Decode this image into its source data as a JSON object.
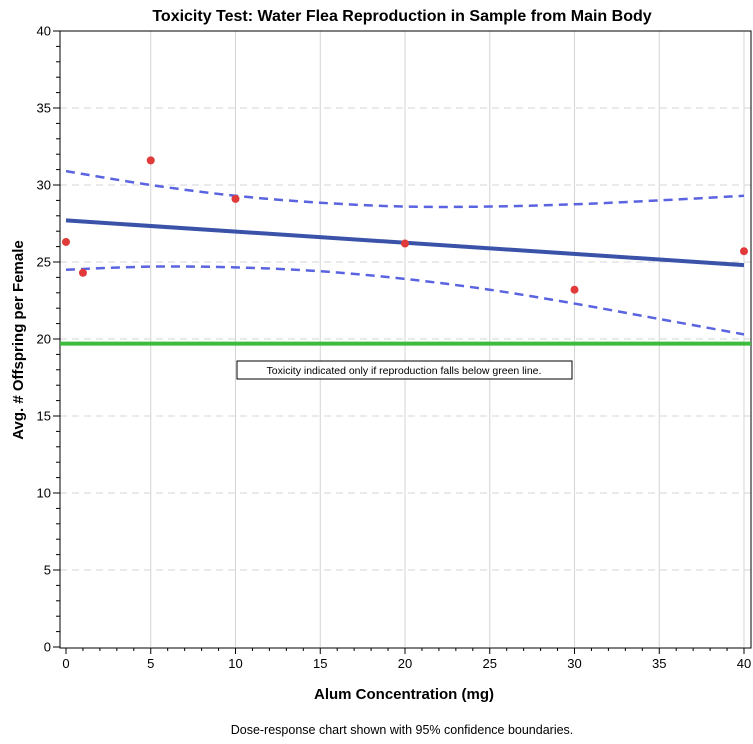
{
  "chart_data": {
    "type": "scatter",
    "title": "Toxicity Test:  Water Flea Reproduction in Sample from Main Body",
    "xlabel": "Alum Concentration (mg)",
    "ylabel": "Avg. # Offspring per Female",
    "xlim": [
      0,
      40
    ],
    "ylim": [
      0,
      40
    ],
    "x_ticks": [
      0,
      5,
      10,
      15,
      20,
      25,
      30,
      35,
      40
    ],
    "y_ticks": [
      0,
      5,
      10,
      15,
      20,
      25,
      30,
      35,
      40
    ],
    "grid": {
      "vertical": "solid",
      "horizontal": "dashed"
    },
    "points": [
      {
        "x": 0,
        "y": 26.3
      },
      {
        "x": 1,
        "y": 24.3
      },
      {
        "x": 5,
        "y": 31.6
      },
      {
        "x": 10,
        "y": 29.1
      },
      {
        "x": 20,
        "y": 26.2
      },
      {
        "x": 30,
        "y": 23.2
      },
      {
        "x": 40,
        "y": 25.7
      }
    ],
    "fit_line": {
      "x": [
        0,
        40
      ],
      "y": [
        27.7,
        24.8
      ]
    },
    "ci_upper": {
      "x": [
        0,
        5,
        10,
        15,
        20,
        25,
        30,
        35,
        40
      ],
      "y": [
        30.9,
        30.0,
        29.3,
        28.85,
        28.6,
        28.6,
        28.75,
        29.0,
        29.3
      ]
    },
    "ci_lower": {
      "x": [
        0,
        5,
        10,
        15,
        20,
        25,
        30,
        35,
        40
      ],
      "y": [
        24.5,
        24.7,
        24.65,
        24.4,
        23.9,
        23.2,
        22.3,
        21.3,
        20.3
      ]
    },
    "threshold": {
      "y": 19.7
    },
    "annotation": "Toxicity indicated only if reproduction falls below green line.",
    "footnote": "Dose-response chart shown with 95% confidence boundaries.",
    "colors": {
      "points": "#e03a3a",
      "fit_line": "#3a52a8",
      "ci": "#5a63e0",
      "threshold": "#3cbc3c",
      "grid": "#d4d4d4"
    }
  }
}
